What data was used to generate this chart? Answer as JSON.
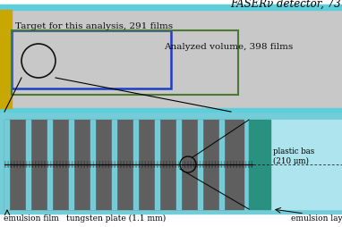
{
  "bg_color": "#ffffff",
  "title_text": "FASERν detector, 73",
  "title_color": "#000000",
  "top_stripe_color": "#5ecfda",
  "top_panel_bg": "#c8c8c8",
  "yellow_bar_color": "#c8a800",
  "blue_box_color": "#1a3fc4",
  "green_box_color": "#4a7a30",
  "target_label": "Target for this analysis, 291 films",
  "analyzed_label": "Analyzed volume, 398 films",
  "emulsion_stripe_color": "#72cdd8",
  "tungsten_color": "#5f5f5f",
  "teal_block_color": "#2a9080",
  "light_blue_color": "#aee4ee",
  "tungsten_label": "tungsten plate (1.1 mm)",
  "emulsion_label": "emulsion film",
  "plastic_label": "plastic bas\n(210 μm)",
  "emulsion_layers_label": "emulsion layers ("
}
